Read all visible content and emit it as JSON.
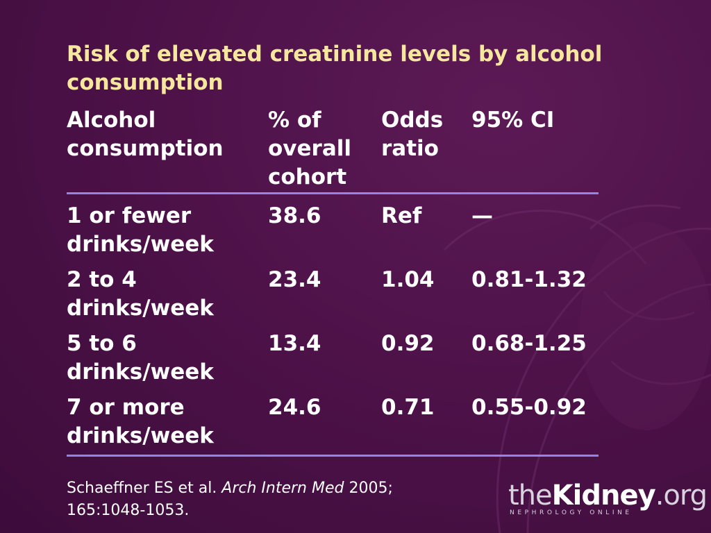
{
  "slide": {
    "title": "Risk of elevated creatinine levels by alcohol consumption"
  },
  "table": {
    "headers": [
      "Alcohol consumption",
      "% of overall cohort",
      "Odds ratio",
      "95% CI"
    ],
    "rows": [
      [
        "1 or fewer drinks/week",
        "38.6",
        "Ref",
        "—"
      ],
      [
        "2 to 4 drinks/week",
        "23.4",
        "1.04",
        "0.81-1.32"
      ],
      [
        "5 to 6 drinks/week",
        "13.4",
        "0.92",
        "0.68-1.25"
      ],
      [
        "7 or more drinks/week",
        "24.6",
        "0.71",
        "0.55-0.92"
      ]
    ]
  },
  "citation": {
    "authors": "Schaeffner ES et al.",
    "journal": "Arch Intern Med",
    "year_vol": "2005;",
    "pages": "165:1048-1053."
  },
  "logo": {
    "prefix": "the",
    "brand": "Kidney",
    "suffix": ".org",
    "tagline": "NEPHROLOGY ONLINE"
  },
  "colors": {
    "background": "#4e1249",
    "title": "#f5e79e",
    "text": "#ffffff",
    "rule": "#8f84f0"
  }
}
